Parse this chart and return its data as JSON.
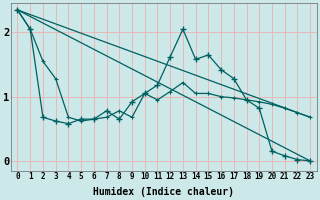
{
  "xlabel": "Humidex (Indice chaleur)",
  "bg_color": "#cce8e8",
  "grid_color": "#e8b8b8",
  "line_color": "#006060",
  "xlim": [
    -0.5,
    23.5
  ],
  "ylim": [
    -0.15,
    2.45
  ],
  "xticks": [
    0,
    1,
    2,
    3,
    4,
    5,
    6,
    7,
    8,
    9,
    10,
    11,
    12,
    13,
    14,
    15,
    16,
    17,
    18,
    19,
    20,
    21,
    22,
    23
  ],
  "yticks": [
    0,
    1,
    2
  ],
  "line1_x": [
    0,
    1,
    2,
    3,
    4,
    5,
    6,
    7,
    8,
    9,
    10,
    11,
    12,
    13,
    14,
    15,
    16,
    17,
    18,
    19,
    20,
    21,
    22,
    23
  ],
  "line1_y": [
    2.35,
    2.05,
    0.68,
    0.62,
    0.58,
    0.65,
    0.65,
    0.78,
    0.65,
    0.92,
    1.05,
    1.18,
    1.62,
    2.05,
    1.58,
    1.65,
    1.42,
    1.28,
    0.95,
    0.82,
    0.15,
    0.08,
    0.02,
    0.0
  ],
  "line2_x": [
    0,
    1,
    2,
    3,
    4,
    5,
    6,
    7,
    8,
    9,
    10,
    11,
    12,
    13,
    14,
    15,
    16,
    17,
    18,
    19,
    20,
    21,
    22,
    23
  ],
  "line2_y": [
    2.35,
    2.05,
    1.55,
    1.28,
    0.68,
    0.62,
    0.65,
    0.68,
    0.78,
    0.68,
    1.05,
    0.95,
    1.08,
    1.22,
    1.05,
    1.05,
    1.0,
    0.98,
    0.95,
    0.92,
    0.88,
    0.82,
    0.75,
    0.68
  ],
  "line3_x": [
    0,
    23
  ],
  "line3_y": [
    2.35,
    0.68
  ],
  "line4_x": [
    0,
    23
  ],
  "line4_y": [
    2.35,
    0.0
  ]
}
